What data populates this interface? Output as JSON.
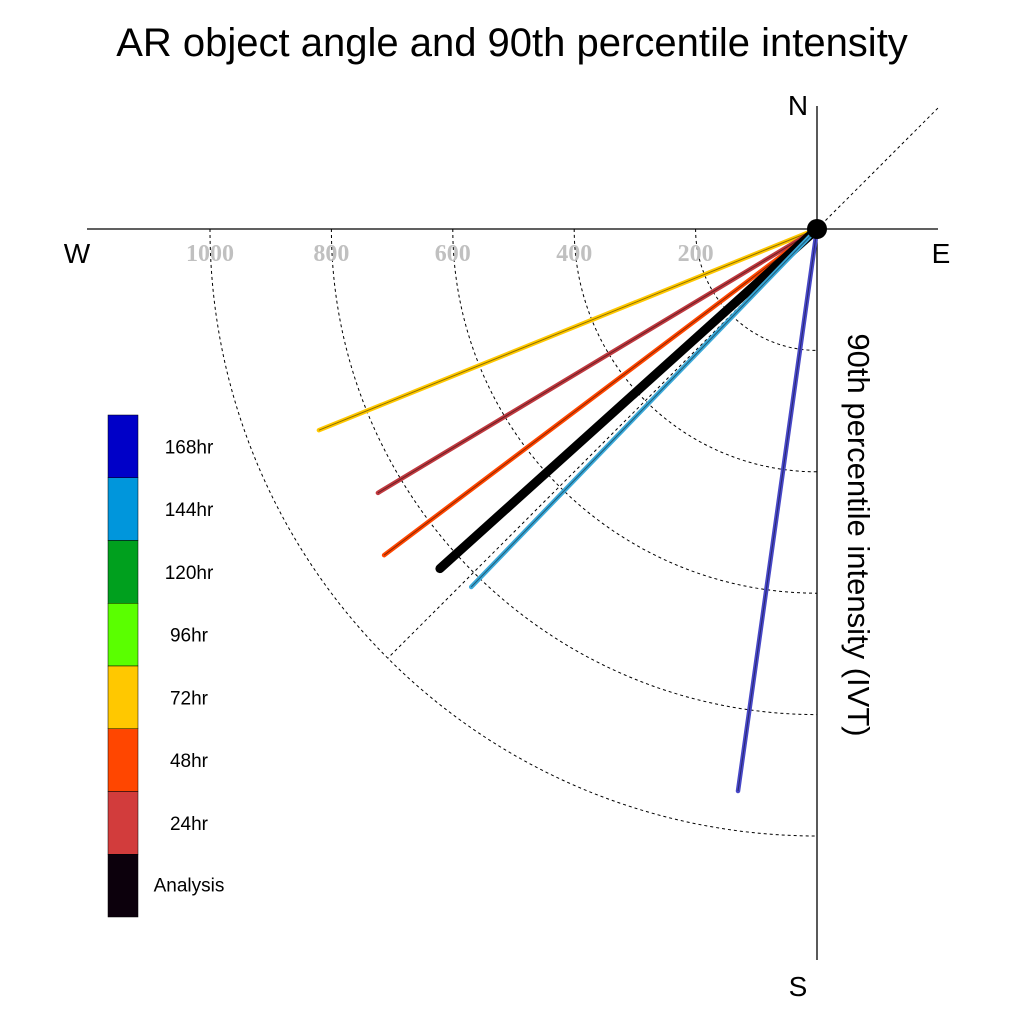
{
  "chart_data": {
    "type": "polar-line",
    "title": "AR object angle and 90th percentile intensity",
    "ylabel": "90th percentile intensity (IVT)",
    "compass": {
      "north": "N",
      "south": "S",
      "east": "E",
      "west": "W"
    },
    "rlim": [
      0,
      1000
    ],
    "ring_ticks": [
      200,
      400,
      600,
      800,
      1000
    ],
    "tick_labels": [
      "200",
      "400",
      "600",
      "800",
      "1000"
    ],
    "grid": true,
    "legend_position": "left",
    "legend": [
      {
        "label": "168hr",
        "color": "#0000c8"
      },
      {
        "label": "144hr",
        "color": "#0096dc"
      },
      {
        "label": "120hr",
        "color": "#00a01e"
      },
      {
        "label": "96hr",
        "color": "#5aff00"
      },
      {
        "label": "72hr",
        "color": "#ffc800"
      },
      {
        "label": "48hr",
        "color": "#ff4600"
      },
      {
        "label": "24hr",
        "color": "#d23c3c"
      },
      {
        "label": "Analysis",
        "color": "#0c000c"
      }
    ],
    "series": [
      {
        "name": "72hr",
        "angle_deg": 202,
        "intensity": 885,
        "color": "#ffc800"
      },
      {
        "name": "24hr",
        "angle_deg": 211,
        "intensity": 844,
        "color": "#c0393f"
      },
      {
        "name": "48hr",
        "angle_deg": 217,
        "intensity": 893,
        "color": "#ff4600"
      },
      {
        "name": "168hr",
        "angle_deg": 262,
        "intensity": 935,
        "color": "#4848c8"
      },
      {
        "name": "Analysis",
        "angle_deg": 222,
        "intensity": 836,
        "color": "#000000"
      },
      {
        "name": "144hr",
        "angle_deg": 226,
        "intensity": 820,
        "color": "#3aa8d8"
      }
    ]
  }
}
